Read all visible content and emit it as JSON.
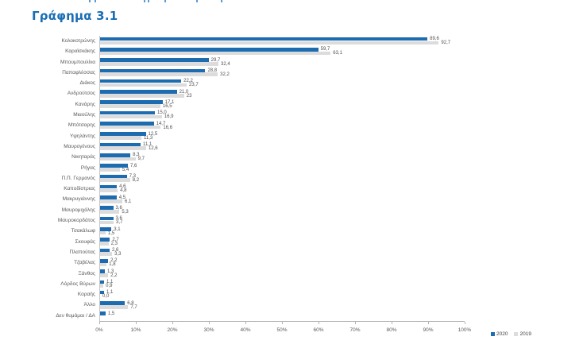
{
  "chart_data": {
    "type": "bar",
    "orientation": "horizontal",
    "title": "Γράφημα 3.1",
    "xlabel": "",
    "ylabel": "",
    "xlim": [
      0,
      100
    ],
    "grid": false,
    "legend_position": "bottom-right",
    "x_ticks": [
      "0%",
      "10%",
      "20%",
      "30%",
      "40%",
      "50%",
      "60%",
      "70%",
      "80%",
      "90%",
      "100%"
    ],
    "categories": [
      "Κολοκοτρώνης",
      "Καραϊσκάκης",
      "Μπουμπουλίνα",
      "Παπαφλέσσας",
      "Διάκος",
      "Ανδρούτσος",
      "Κανάρης",
      "Μιαούλης",
      "Μπότσαρης",
      "Υψηλάντης",
      "Μαυρογένους",
      "Νικηταράς",
      "Ρήγας",
      "Π.Π. Γερμανός",
      "Καποδίστριας",
      "Μακρυγιάννης",
      "Μαυρομιχάλης",
      "Μαυροκορδάτος",
      "Τσακάλωφ",
      "Σκουφάς",
      "Πλαπούτας",
      "Τζαβέλας",
      "Ξάνθος",
      "Λόρδος Βύρων",
      "Κοραής",
      "Άλλο",
      "Δεν θυμάμαι / ΔΑ"
    ],
    "series": [
      {
        "name": "2020",
        "color": "#1e6cb0",
        "values": [
          89.6,
          59.7,
          29.7,
          28.8,
          22.2,
          21.0,
          17.1,
          15.0,
          14.7,
          12.5,
          11.1,
          8.3,
          7.6,
          7.3,
          4.6,
          4.5,
          3.6,
          3.6,
          3.1,
          2.7,
          2.6,
          2.2,
          1.3,
          1.1,
          1.1,
          6.8,
          1.5
        ],
        "labels": [
          "89,6",
          "59,7",
          "29,7",
          "28,8",
          "22,2",
          "21,0",
          "17,1",
          "15,0",
          "14,7",
          "12,5",
          "11,1",
          "8,3",
          "7,6",
          "7,3",
          "4,6",
          "4,5",
          "3,6",
          "3,6",
          "3,1",
          "2,7",
          "2,6",
          "2,2",
          "1,3",
          "1,1",
          "1,1",
          "6,8",
          "1,5"
        ]
      },
      {
        "name": "2019",
        "color": "#dcdcdc",
        "values": [
          92.7,
          63.1,
          32.4,
          32.2,
          23.7,
          23,
          16.5,
          16.9,
          16.6,
          11.3,
          12.6,
          9.7,
          5.4,
          8.2,
          4.8,
          6.1,
          5.3,
          3.7,
          1.5,
          2.3,
          3.3,
          1.8,
          2.2,
          0.9,
          0.0,
          7.7,
          null
        ],
        "labels": [
          "92,7",
          "63,1",
          "32,4",
          "32,2",
          "23,7",
          "23",
          "16,5",
          "16,9",
          "16,6",
          "11,3",
          "12,6",
          "9,7",
          "5,4",
          "8,2",
          "4,8",
          "6,1",
          "5,3",
          "3,7",
          "1,5",
          "2,3",
          "3,3",
          "1,8",
          "2,2",
          "0,9",
          "0,0",
          "7,7",
          null
        ]
      }
    ],
    "legend": [
      {
        "name": "2020",
        "color": "#1e6cb0"
      },
      {
        "name": "2019",
        "color": "#dcdcdc"
      }
    ]
  }
}
